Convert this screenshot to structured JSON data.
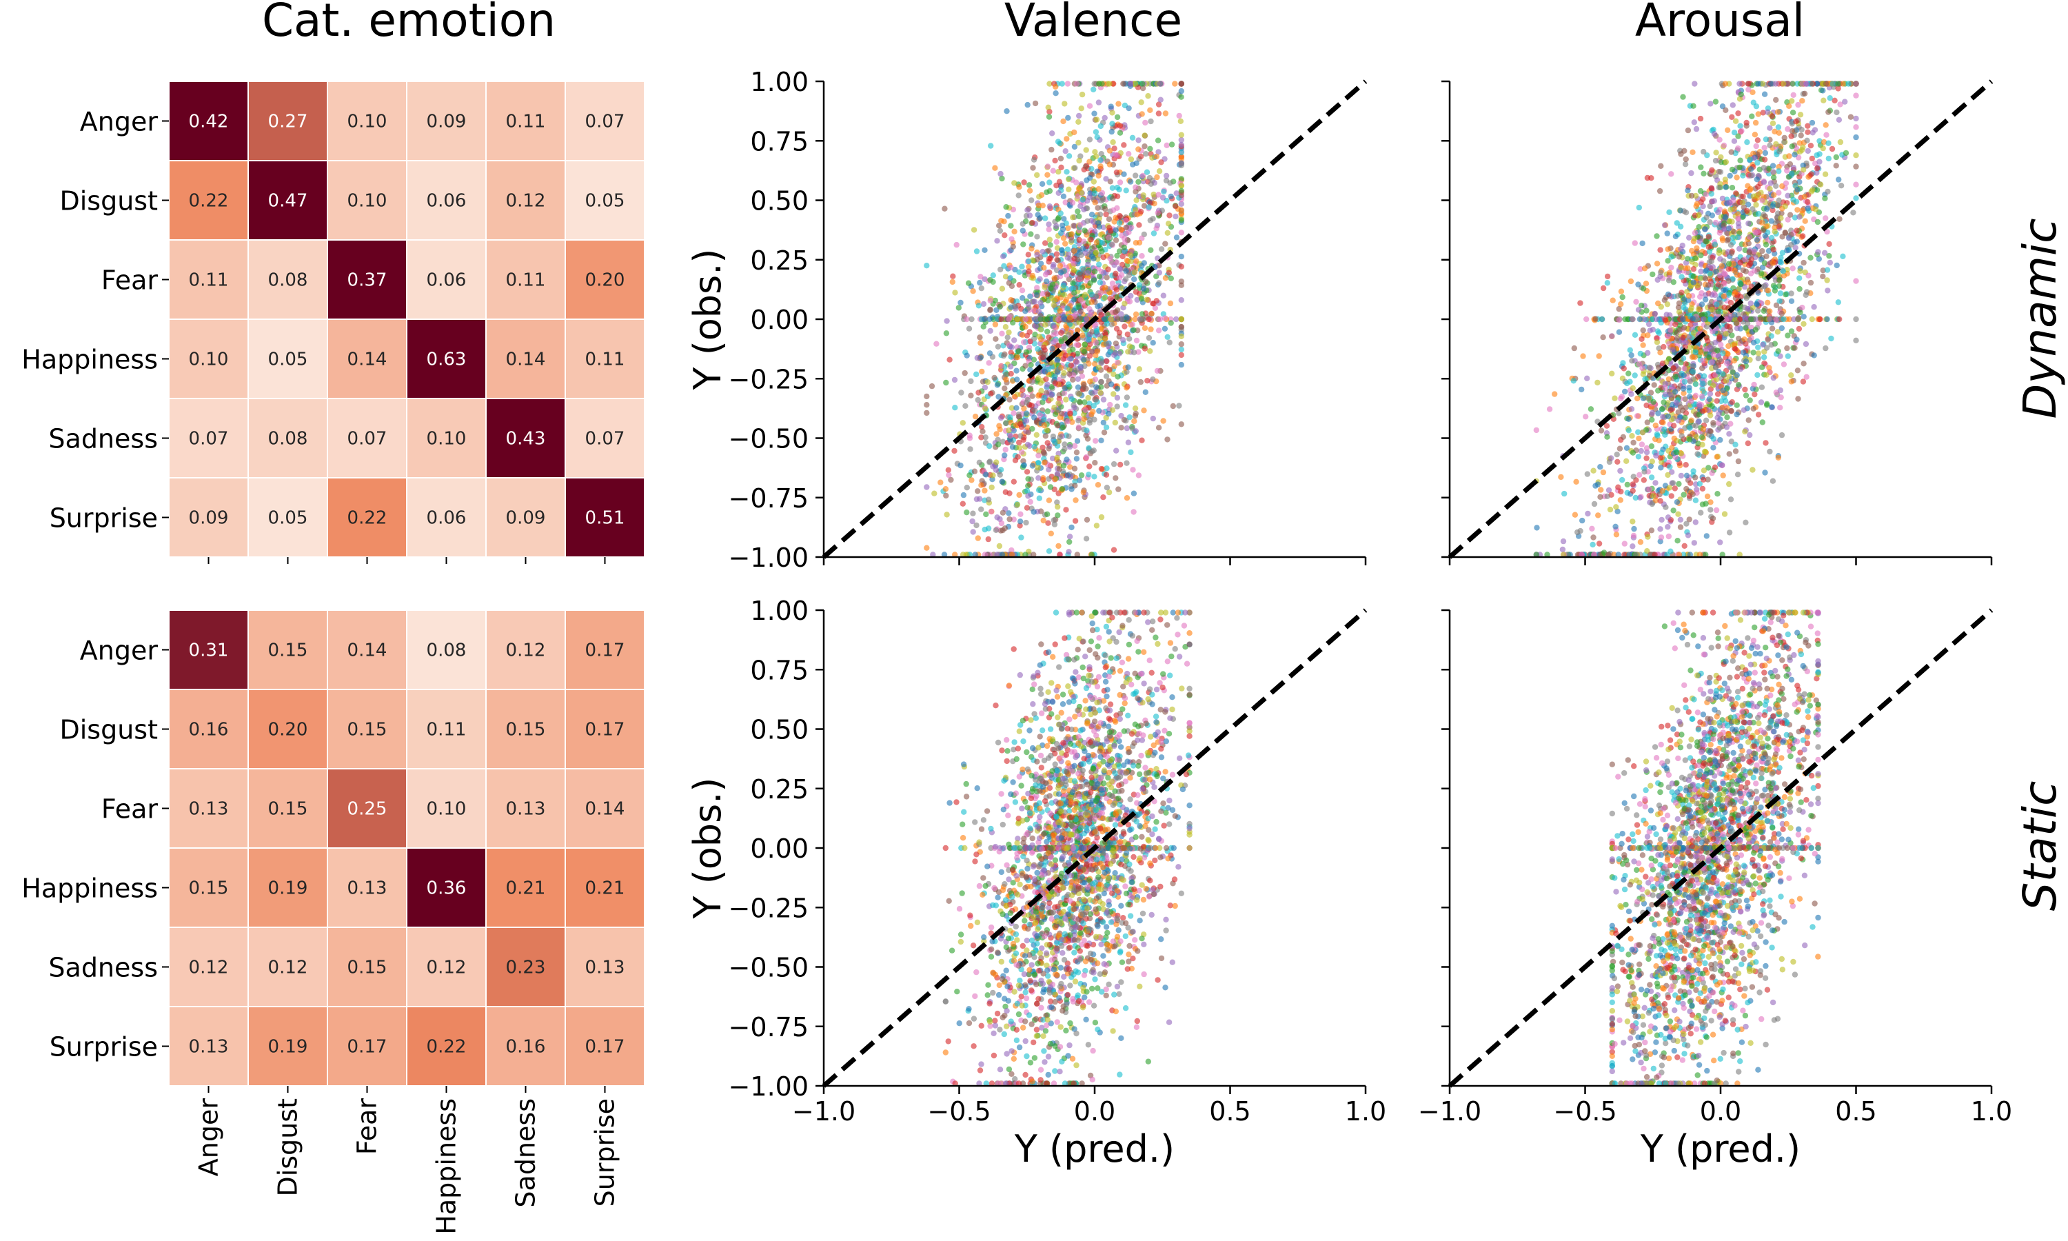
{
  "column_titles": [
    "Cat. emotion",
    "Valence",
    "Arousal"
  ],
  "row_labels": [
    "Dynamic",
    "Static"
  ],
  "colors": {
    "heatmap_low": "#fbe3d7",
    "heatmap_mid": "#ef8a62",
    "heatmap_high": "#67001f",
    "scatter_palette": [
      "#1f77b4",
      "#ff7f0e",
      "#2ca02c",
      "#d62728",
      "#9467bd",
      "#8c564b",
      "#e377c2",
      "#7f7f7f",
      "#bcbd22",
      "#17becf"
    ]
  },
  "chart_data": [
    {
      "type": "heatmap",
      "panel": "Cat. emotion / Dynamic",
      "rows": [
        "Anger",
        "Disgust",
        "Fear",
        "Happiness",
        "Sadness",
        "Surprise"
      ],
      "cols": [
        "Anger",
        "Disgust",
        "Fear",
        "Happiness",
        "Sadness",
        "Surprise"
      ],
      "values": [
        [
          0.42,
          0.27,
          0.1,
          0.09,
          0.11,
          0.07
        ],
        [
          0.22,
          0.47,
          0.1,
          0.06,
          0.12,
          0.05
        ],
        [
          0.11,
          0.08,
          0.37,
          0.06,
          0.11,
          0.2
        ],
        [
          0.1,
          0.05,
          0.14,
          0.63,
          0.14,
          0.11
        ],
        [
          0.07,
          0.08,
          0.07,
          0.1,
          0.43,
          0.07
        ],
        [
          0.09,
          0.05,
          0.22,
          0.06,
          0.09,
          0.51
        ]
      ],
      "vmin": 0.05,
      "vmax": 0.37,
      "show_col_labels": false
    },
    {
      "type": "heatmap",
      "panel": "Cat. emotion / Static",
      "rows": [
        "Anger",
        "Disgust",
        "Fear",
        "Happiness",
        "Sadness",
        "Surprise"
      ],
      "cols": [
        "Anger",
        "Disgust",
        "Fear",
        "Happiness",
        "Sadness",
        "Surprise"
      ],
      "values": [
        [
          0.31,
          0.15,
          0.14,
          0.08,
          0.12,
          0.17
        ],
        [
          0.16,
          0.2,
          0.15,
          0.11,
          0.15,
          0.17
        ],
        [
          0.13,
          0.15,
          0.25,
          0.1,
          0.13,
          0.14
        ],
        [
          0.15,
          0.19,
          0.13,
          0.36,
          0.21,
          0.21
        ],
        [
          0.12,
          0.12,
          0.15,
          0.12,
          0.23,
          0.13
        ],
        [
          0.13,
          0.19,
          0.17,
          0.22,
          0.16,
          0.17
        ]
      ],
      "vmin": 0.08,
      "vmax": 0.33,
      "show_col_labels": true
    },
    {
      "type": "scatter",
      "panel": "Valence / Dynamic",
      "xlabel": "",
      "ylabel": "Y (obs.)",
      "xlim": [
        -1,
        1
      ],
      "ylim": [
        -1,
        1
      ],
      "xticks": [
        "−1.0",
        "−0.5",
        "0.0",
        "0.5",
        "1.0"
      ],
      "yticks": [
        "−1.00",
        "−0.75",
        "−0.50",
        "−0.25",
        "0.00",
        "0.25",
        "0.50",
        "0.75",
        "1.00"
      ],
      "show_x_ticklabels": false,
      "show_y_ticklabels": true,
      "reference_line": "y = x (dashed)",
      "point_cloud": {
        "x_center": -0.08,
        "x_spread": 0.2,
        "slope": 1.2,
        "noise": 0.42,
        "x_min": -0.62,
        "x_max": 0.32
      }
    },
    {
      "type": "scatter",
      "panel": "Arousal / Dynamic",
      "xlabel": "",
      "ylabel": "",
      "xlim": [
        -1,
        1
      ],
      "ylim": [
        -1,
        1
      ],
      "xticks": [
        "−1.0",
        "−0.5",
        "0.0",
        "0.5",
        "1.0"
      ],
      "yticks": [
        "−1.00",
        "−0.75",
        "−0.50",
        "−0.25",
        "0.00",
        "0.25",
        "0.50",
        "0.75",
        "1.00"
      ],
      "show_x_ticklabels": false,
      "show_y_ticklabels": false,
      "reference_line": "y = x (dashed)",
      "point_cloud": {
        "x_center": -0.02,
        "x_spread": 0.22,
        "slope": 1.6,
        "noise": 0.38,
        "x_min": -0.68,
        "x_max": 0.5
      }
    },
    {
      "type": "scatter",
      "panel": "Valence / Static",
      "xlabel": "Y (pred.)",
      "ylabel": "Y (obs.)",
      "xlim": [
        -1,
        1
      ],
      "ylim": [
        -1,
        1
      ],
      "xticks": [
        "−1.0",
        "−0.5",
        "0.0",
        "0.5",
        "1.0"
      ],
      "yticks": [
        "−1.00",
        "−0.75",
        "−0.50",
        "−0.25",
        "0.00",
        "0.25",
        "0.50",
        "0.75",
        "1.00"
      ],
      "show_x_ticklabels": true,
      "show_y_ticklabels": true,
      "reference_line": "y = x (dashed)",
      "point_cloud": {
        "x_center": -0.06,
        "x_spread": 0.17,
        "slope": 1.1,
        "noise": 0.42,
        "x_min": -0.55,
        "x_max": 0.35
      }
    },
    {
      "type": "scatter",
      "panel": "Arousal / Static",
      "xlabel": "Y (pred.)",
      "ylabel": "",
      "xlim": [
        -1,
        1
      ],
      "ylim": [
        -1,
        1
      ],
      "xticks": [
        "−1.0",
        "−0.5",
        "0.0",
        "0.5",
        "1.0"
      ],
      "yticks": [
        "−1.00",
        "−0.75",
        "−0.50",
        "−0.25",
        "0.00",
        "0.25",
        "0.50",
        "0.75",
        "1.00"
      ],
      "show_x_ticklabels": true,
      "show_y_ticklabels": false,
      "reference_line": "y = x (dashed)",
      "point_cloud": {
        "x_center": -0.02,
        "x_spread": 0.18,
        "slope": 1.5,
        "noise": 0.42,
        "x_min": -0.4,
        "x_max": 0.36
      }
    }
  ]
}
